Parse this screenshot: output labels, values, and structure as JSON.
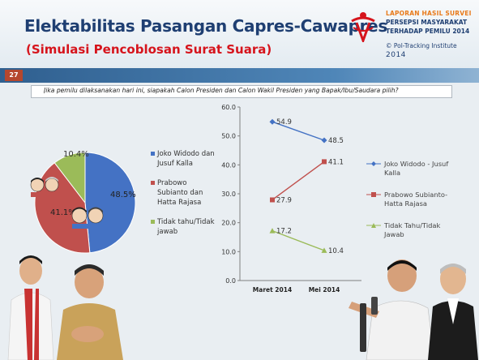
{
  "header": {
    "title": "Elektabilitas Pasangan Capres-Cawapres",
    "subtitle": "(Simulasi Pencoblosan  Surat Suara)",
    "report_line1": "LAPORAN HASIL SURVEI",
    "report_line2": "PERSEPSI MASYARAKAT",
    "report_line3": "TERHADAP PEMILU 2014",
    "copyright": "© Pol-Tracking Institute",
    "copyright_year": "2014"
  },
  "page_number": "27",
  "question": "Jika pemilu dilaksanakan hari ini, siapakah Calon Presiden dan Calon Wakil Presiden yang Bapak/Ibu/Saudara pilih?",
  "colors": {
    "title": "#1f3f72",
    "subtitle": "#d6141c",
    "jokowi": "#4472c4",
    "prabowo": "#c0504d",
    "undecided": "#9bbb59"
  },
  "chart_data": [
    {
      "type": "pie",
      "slices": [
        {
          "name": "Joko Widodo dan Jusuf Kalla",
          "value": 48.5,
          "label": "48.5%",
          "color": "#4472c4"
        },
        {
          "name": "Prabowo Subianto dan Hatta Rajasa",
          "value": 41.1,
          "label": "41.1%",
          "color": "#c0504d"
        },
        {
          "name": "Tidak tahu/Tidak jawab",
          "value": 10.4,
          "label": "10.4%",
          "color": "#9bbb59"
        }
      ],
      "legend": [
        "Joko Widodo dan Jusuf Kalla",
        "Prabowo Subianto dan Hatta Rajasa",
        "Tidak tahu/Tidak jawab"
      ],
      "legend_position": "right"
    },
    {
      "type": "line",
      "categories": [
        "Maret 2014",
        "Mei 2014"
      ],
      "ylim": [
        0,
        60
      ],
      "yticks": [
        "0.0",
        "10.0",
        "20.0",
        "30.0",
        "40.0",
        "50.0",
        "60.0"
      ],
      "grid": false,
      "legend_position": "right",
      "series": [
        {
          "name": "Joko Widodo - Jusuf Kalla",
          "values": [
            54.9,
            48.5
          ],
          "labels": [
            "54.9",
            "48.5"
          ],
          "color": "#4472c4",
          "marker": "diamond"
        },
        {
          "name": "Prabowo Subianto-Hatta Rajasa",
          "values": [
            27.9,
            41.1
          ],
          "labels": [
            "27.9",
            "41.1"
          ],
          "color": "#c0504d",
          "marker": "square"
        },
        {
          "name": "Tidak Tahu/Tidak Jawab",
          "values": [
            17.2,
            10.4
          ],
          "labels": [
            "17.2",
            "10.4"
          ],
          "color": "#9bbb59",
          "marker": "triangle"
        }
      ]
    }
  ]
}
